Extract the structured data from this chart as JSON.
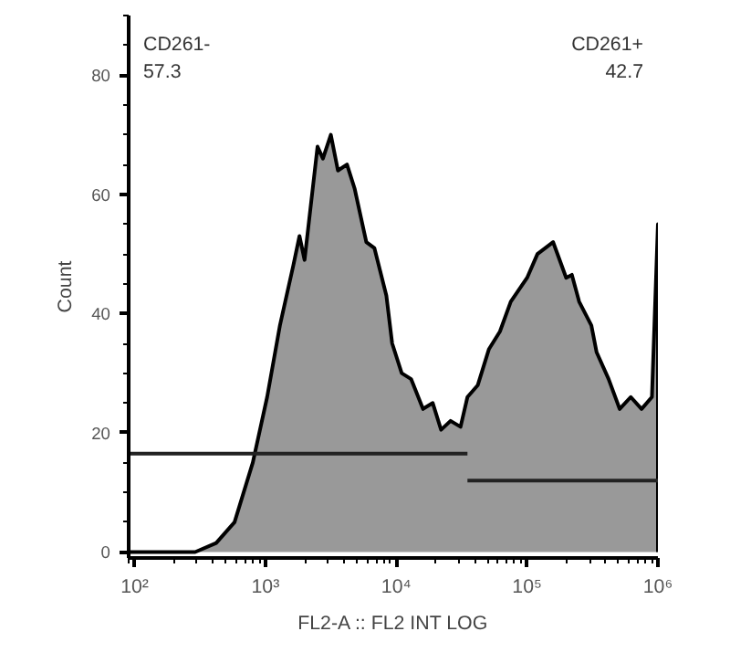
{
  "chart_data": {
    "type": "area",
    "xlabel": "FL2-A :: FL2 INT LOG",
    "ylabel": "Count",
    "log": "x",
    "xlim": [
      90,
      1000000
    ],
    "ylim": [
      -1,
      90
    ],
    "xticks": [
      {
        "value": 100,
        "label": "10²"
      },
      {
        "value": 1000,
        "label": "10³"
      },
      {
        "value": 10000,
        "label": "10⁴"
      },
      {
        "value": 100000,
        "label": "10⁵"
      },
      {
        "value": 1000000,
        "label": "10⁶"
      }
    ],
    "yticks": [
      0,
      20,
      40,
      60,
      80
    ],
    "grid": false,
    "series": [
      {
        "color": "#999999",
        "x": [
          90,
          290,
          420,
          580,
          800,
          1030,
          1290,
          1630,
          1820,
          1990,
          2500,
          2750,
          3160,
          3580,
          4200,
          4800,
          5900,
          6800,
          8400,
          9300,
          11000,
          13000,
          16000,
          19000,
          22000,
          26000,
          31000,
          35000,
          42000,
          51000,
          62000,
          75000,
          100000,
          120000,
          158000,
          199000,
          220000,
          250000,
          310000,
          340000,
          420000,
          510000,
          620000,
          750000,
          900000,
          1000000,
          1000000
        ],
        "values": [
          0,
          0,
          1.5,
          5,
          15,
          26,
          38,
          48,
          53,
          49,
          68,
          66,
          70,
          64,
          65,
          61,
          52,
          51,
          43,
          35,
          30,
          29,
          24,
          25,
          20.5,
          22,
          21,
          26,
          28,
          34,
          37,
          42,
          46,
          50,
          52,
          46,
          46.5,
          42,
          38,
          33.5,
          29,
          24,
          26,
          24,
          26,
          55,
          0
        ]
      },
      {
        "type": "line",
        "color": "#222222",
        "x": [
          90,
          35000
        ],
        "values": [
          16.5,
          16.5
        ]
      },
      {
        "type": "line",
        "color": "#222222",
        "x": [
          35000,
          1000000
        ],
        "values": [
          12,
          12
        ]
      }
    ],
    "annotations": [
      "CD261-",
      "57.3",
      "CD261+",
      "42.7"
    ]
  }
}
